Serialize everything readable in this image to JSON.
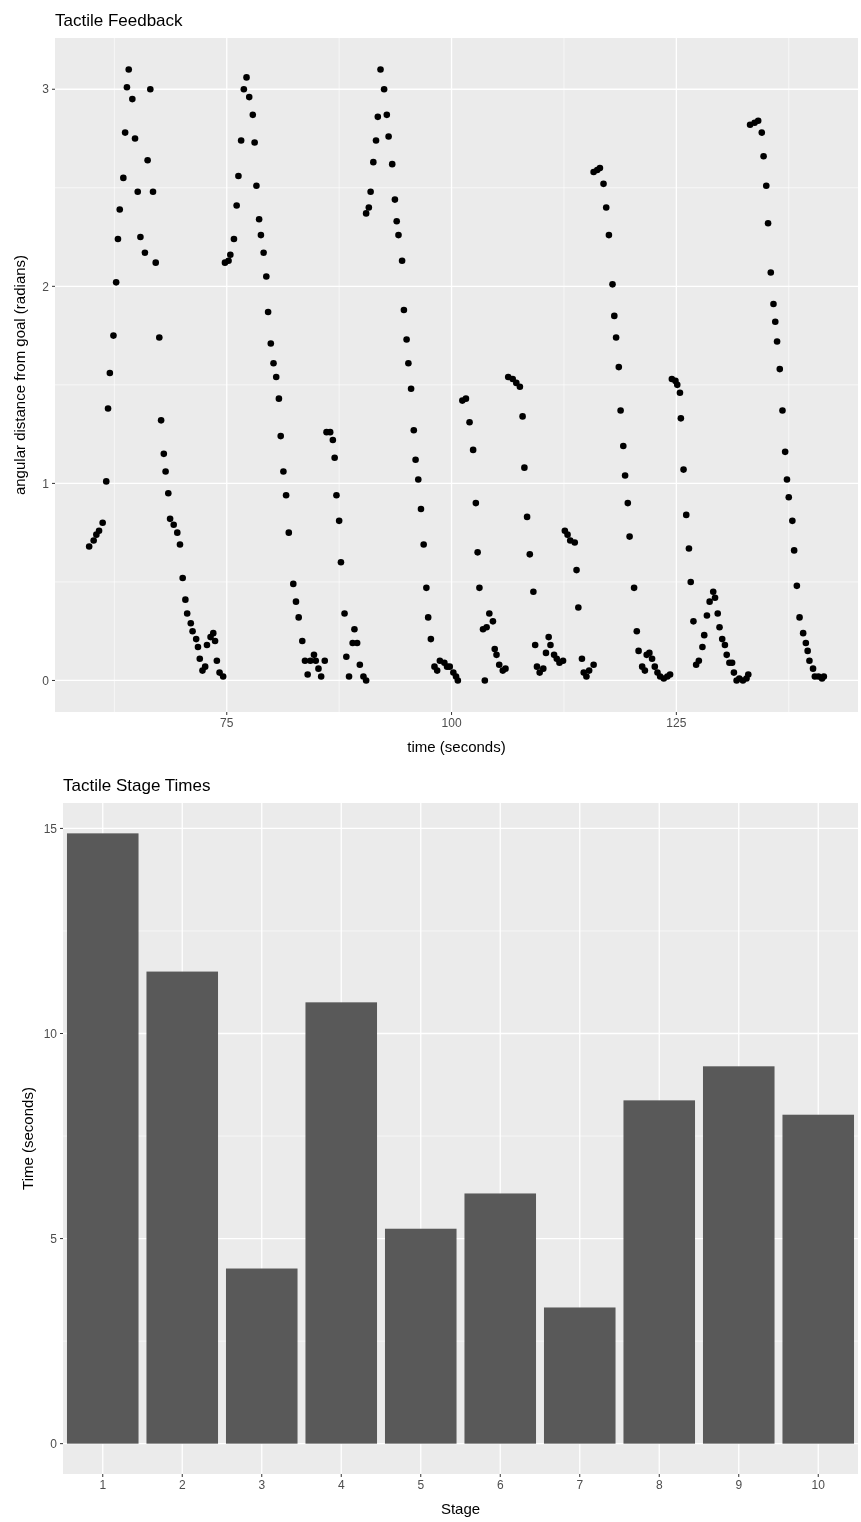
{
  "chart_data": [
    {
      "type": "scatter",
      "title": "Tactile Feedback",
      "xlabel": "time (seconds)",
      "ylabel": "angular distance from goal (radians)",
      "xlim": [
        55.9,
        145.2
      ],
      "ylim": [
        -0.16,
        3.26
      ],
      "xticks": [
        75,
        100,
        125
      ],
      "yticks": [
        0,
        1,
        2,
        3
      ],
      "grid": true,
      "marker": "circle",
      "series": [
        {
          "color": "#000000",
          "x": [
            59.7,
            60.2,
            60.5,
            60.8,
            61.2,
            61.6,
            61.8,
            62.0,
            62.4,
            62.7,
            62.9,
            63.1,
            63.5,
            63.7,
            63.9,
            64.1,
            64.5,
            64.8,
            65.1,
            65.4,
            65.9,
            66.2,
            66.5,
            66.8,
            67.1,
            67.5,
            67.7,
            68.0,
            68.2,
            68.5,
            68.7,
            69.1,
            69.5,
            69.8,
            70.1,
            70.4,
            70.6,
            71.0,
            71.2,
            71.6,
            71.8,
            72.0,
            72.3,
            72.6,
            72.8,
            73.2,
            73.5,
            73.7,
            73.9,
            74.2,
            74.6,
            74.8,
            75.2,
            75.4,
            75.8,
            76.1,
            76.3,
            76.6,
            76.9,
            77.2,
            77.5,
            77.9,
            78.1,
            78.3,
            78.6,
            78.8,
            79.1,
            79.4,
            79.6,
            79.9,
            80.2,
            80.5,
            80.8,
            81.0,
            81.3,
            81.6,
            81.9,
            82.4,
            82.7,
            83.0,
            83.4,
            83.7,
            84.0,
            84.3,
            84.7,
            84.9,
            85.2,
            85.5,
            85.9,
            86.1,
            86.5,
            86.8,
            87.0,
            87.2,
            87.5,
            87.7,
            88.1,
            88.3,
            88.6,
            89.0,
            89.2,
            89.5,
            89.8,
            90.2,
            90.5,
            90.5,
            90.8,
            91.0,
            91.3,
            91.6,
            91.8,
            92.1,
            92.5,
            92.8,
            93.0,
            93.4,
            93.7,
            93.9,
            94.1,
            94.5,
            94.7,
            95.0,
            95.2,
            95.5,
            95.8,
            96.0,
            96.3,
            96.6,
            96.9,
            97.2,
            97.4,
            97.7,
            98.1,
            98.4,
            98.7,
            99.2,
            99.5,
            99.8,
            100.2,
            100.5,
            100.7,
            101.2,
            101.6,
            102.0,
            102.4,
            102.7,
            102.9,
            103.1,
            103.5,
            103.7,
            103.9,
            104.2,
            104.6,
            104.8,
            105.0,
            105.3,
            105.7,
            106.0,
            106.3,
            106.8,
            107.2,
            107.6,
            107.9,
            108.1,
            108.4,
            108.7,
            109.1,
            109.3,
            109.5,
            109.8,
            110.2,
            110.5,
            110.8,
            111.0,
            111.4,
            111.7,
            112.0,
            112.4,
            112.6,
            112.9,
            113.2,
            113.7,
            113.9,
            114.1,
            114.5,
            114.7,
            115.0,
            115.3,
            115.8,
            115.8,
            116.2,
            116.5,
            116.9,
            117.2,
            117.5,
            117.9,
            118.1,
            118.3,
            118.6,
            118.8,
            119.1,
            119.3,
            119.6,
            119.8,
            120.3,
            120.6,
            120.8,
            121.2,
            121.5,
            121.7,
            122.0,
            122.3,
            122.6,
            122.9,
            123.2,
            123.6,
            124.0,
            124.3,
            124.5,
            124.9,
            125.1,
            125.4,
            125.5,
            125.8,
            126.1,
            126.4,
            126.6,
            126.9,
            127.2,
            127.5,
            127.9,
            128.1,
            128.4,
            128.7,
            129.1,
            129.3,
            129.6,
            129.8,
            130.1,
            130.4,
            130.6,
            130.9,
            131.2,
            131.4,
            131.7,
            132.0,
            132.4,
            132.8,
            133.0,
            133.2,
            133.7,
            134.1,
            134.5,
            134.7,
            135.0,
            135.2,
            135.5,
            135.8,
            136.0,
            136.2,
            136.5,
            136.8,
            137.1,
            137.3,
            137.5,
            137.9,
            138.1,
            138.4,
            138.7,
            139.1,
            139.4,
            139.6,
            139.8,
            140.2,
            140.4,
            140.8,
            141.2,
            141.4
          ],
          "values": [
            0.68,
            0.71,
            0.74,
            0.76,
            0.8,
            1.01,
            1.38,
            1.56,
            1.75,
            2.02,
            2.24,
            2.39,
            2.55,
            2.78,
            3.01,
            3.1,
            2.95,
            2.75,
            2.48,
            2.25,
            2.17,
            2.64,
            3.0,
            2.48,
            2.12,
            1.74,
            1.32,
            1.15,
            1.06,
            0.95,
            0.82,
            0.79,
            0.75,
            0.69,
            0.52,
            0.41,
            0.34,
            0.29,
            0.25,
            0.21,
            0.17,
            0.11,
            0.05,
            0.07,
            0.18,
            0.22,
            0.24,
            0.2,
            0.1,
            0.04,
            0.02,
            2.12,
            2.13,
            2.16,
            2.24,
            2.41,
            2.56,
            2.74,
            3.0,
            3.06,
            2.96,
            2.87,
            2.73,
            2.51,
            2.34,
            2.26,
            2.17,
            2.05,
            1.87,
            1.71,
            1.61,
            1.54,
            1.43,
            1.24,
            1.06,
            0.94,
            0.75,
            0.49,
            0.4,
            0.32,
            0.2,
            0.1,
            0.03,
            0.1,
            0.13,
            0.1,
            0.06,
            0.02,
            0.1,
            1.26,
            1.26,
            1.22,
            1.13,
            0.94,
            0.81,
            0.6,
            0.34,
            0.12,
            0.02,
            0.19,
            0.26,
            0.19,
            0.08,
            0.02,
            0.0,
            2.37,
            2.4,
            2.48,
            2.63,
            2.74,
            2.86,
            3.1,
            3.0,
            2.87,
            2.76,
            2.62,
            2.44,
            2.33,
            2.26,
            2.13,
            1.88,
            1.73,
            1.61,
            1.48,
            1.27,
            1.12,
            1.02,
            0.87,
            0.69,
            0.47,
            0.32,
            0.21,
            0.07,
            0.05,
            0.1,
            0.09,
            0.07,
            0.07,
            0.04,
            0.02,
            0.0,
            1.42,
            1.43,
            1.31,
            1.17,
            0.9,
            0.65,
            0.47,
            0.26,
            0.0,
            0.27,
            0.34,
            0.3,
            0.16,
            0.13,
            0.08,
            0.05,
            0.06,
            1.54,
            1.53,
            1.51,
            1.49,
            1.34,
            1.08,
            0.83,
            0.64,
            0.45,
            0.18,
            0.07,
            0.04,
            0.06,
            0.14,
            0.22,
            0.18,
            0.13,
            0.11,
            0.09,
            0.1,
            0.76,
            0.74,
            0.71,
            0.7,
            0.56,
            0.37,
            0.11,
            0.04,
            0.02,
            0.05,
            0.08,
            2.58,
            2.59,
            2.6,
            2.52,
            2.4,
            2.26,
            2.01,
            1.85,
            1.74,
            1.59,
            1.37,
            1.19,
            1.04,
            0.9,
            0.73,
            0.47,
            0.25,
            0.15,
            0.07,
            0.05,
            0.13,
            0.14,
            0.11,
            0.07,
            0.04,
            0.02,
            0.01,
            0.02,
            0.03,
            1.53,
            1.52,
            1.5,
            1.46,
            1.33,
            1.07,
            0.84,
            0.67,
            0.5,
            0.3,
            0.08,
            0.1,
            0.17,
            0.23,
            0.33,
            0.4,
            0.45,
            0.42,
            0.34,
            0.27,
            0.21,
            0.18,
            0.13,
            0.09,
            0.09,
            0.04,
            0.0,
            0.01,
            0.0,
            0.01,
            0.03,
            2.82,
            2.83,
            2.84,
            2.78,
            2.66,
            2.51,
            2.32,
            2.07,
            1.91,
            1.82,
            1.72,
            1.58,
            1.37,
            1.16,
            1.02,
            0.93,
            0.81,
            0.66,
            0.48,
            0.32,
            0.24,
            0.19,
            0.15,
            0.1,
            0.06,
            0.02,
            0.02,
            0.01,
            0.02
          ]
        }
      ]
    },
    {
      "type": "bar",
      "title": "Tactile Stage Times",
      "xlabel": "Stage",
      "ylabel": "Time (seconds)",
      "categories": [
        "1",
        "2",
        "3",
        "4",
        "5",
        "6",
        "7",
        "8",
        "9",
        "10"
      ],
      "ylim": [
        -0.74,
        15.62
      ],
      "yticks": [
        0,
        5,
        10,
        15
      ],
      "grid": true,
      "series": [
        {
          "color": "#595959",
          "values": [
            14.88,
            11.51,
            4.27,
            10.76,
            5.24,
            6.1,
            3.32,
            8.37,
            9.2,
            8.02
          ]
        }
      ]
    }
  ]
}
